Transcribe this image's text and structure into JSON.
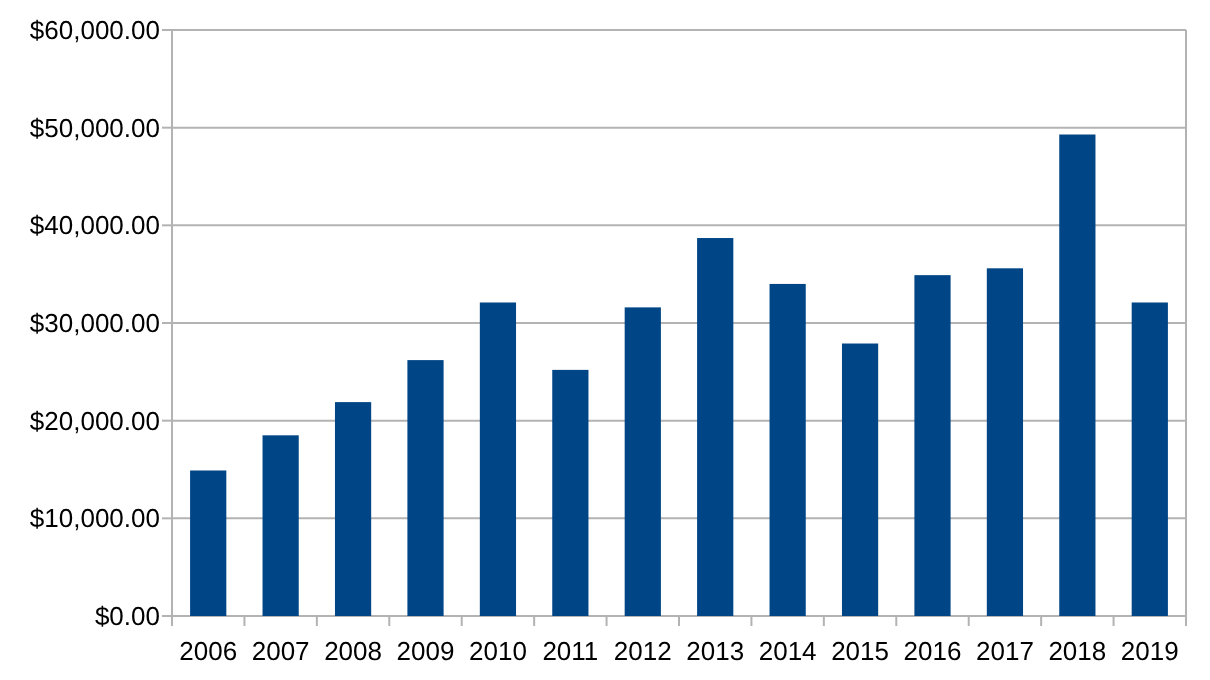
{
  "chart_data": {
    "type": "bar",
    "categories": [
      "2006",
      "2007",
      "2008",
      "2009",
      "2010",
      "2011",
      "2012",
      "2013",
      "2014",
      "2015",
      "2016",
      "2017",
      "2018",
      "2019"
    ],
    "values": [
      14900,
      18500,
      21900,
      26200,
      32100,
      25200,
      31600,
      38700,
      34000,
      27900,
      34900,
      35600,
      49300,
      32100
    ],
    "color": "#004586",
    "ylim": [
      0,
      60000
    ],
    "yticks": [
      {
        "value": 0,
        "label": "$0.00"
      },
      {
        "value": 10000,
        "label": "$10,000.00"
      },
      {
        "value": 20000,
        "label": "$20,000.00"
      },
      {
        "value": 30000,
        "label": "$30,000.00"
      },
      {
        "value": 40000,
        "label": "$40,000.00"
      },
      {
        "value": 50000,
        "label": "$50,000.00"
      },
      {
        "value": 60000,
        "label": "$60,000.00"
      }
    ],
    "grid": true
  }
}
